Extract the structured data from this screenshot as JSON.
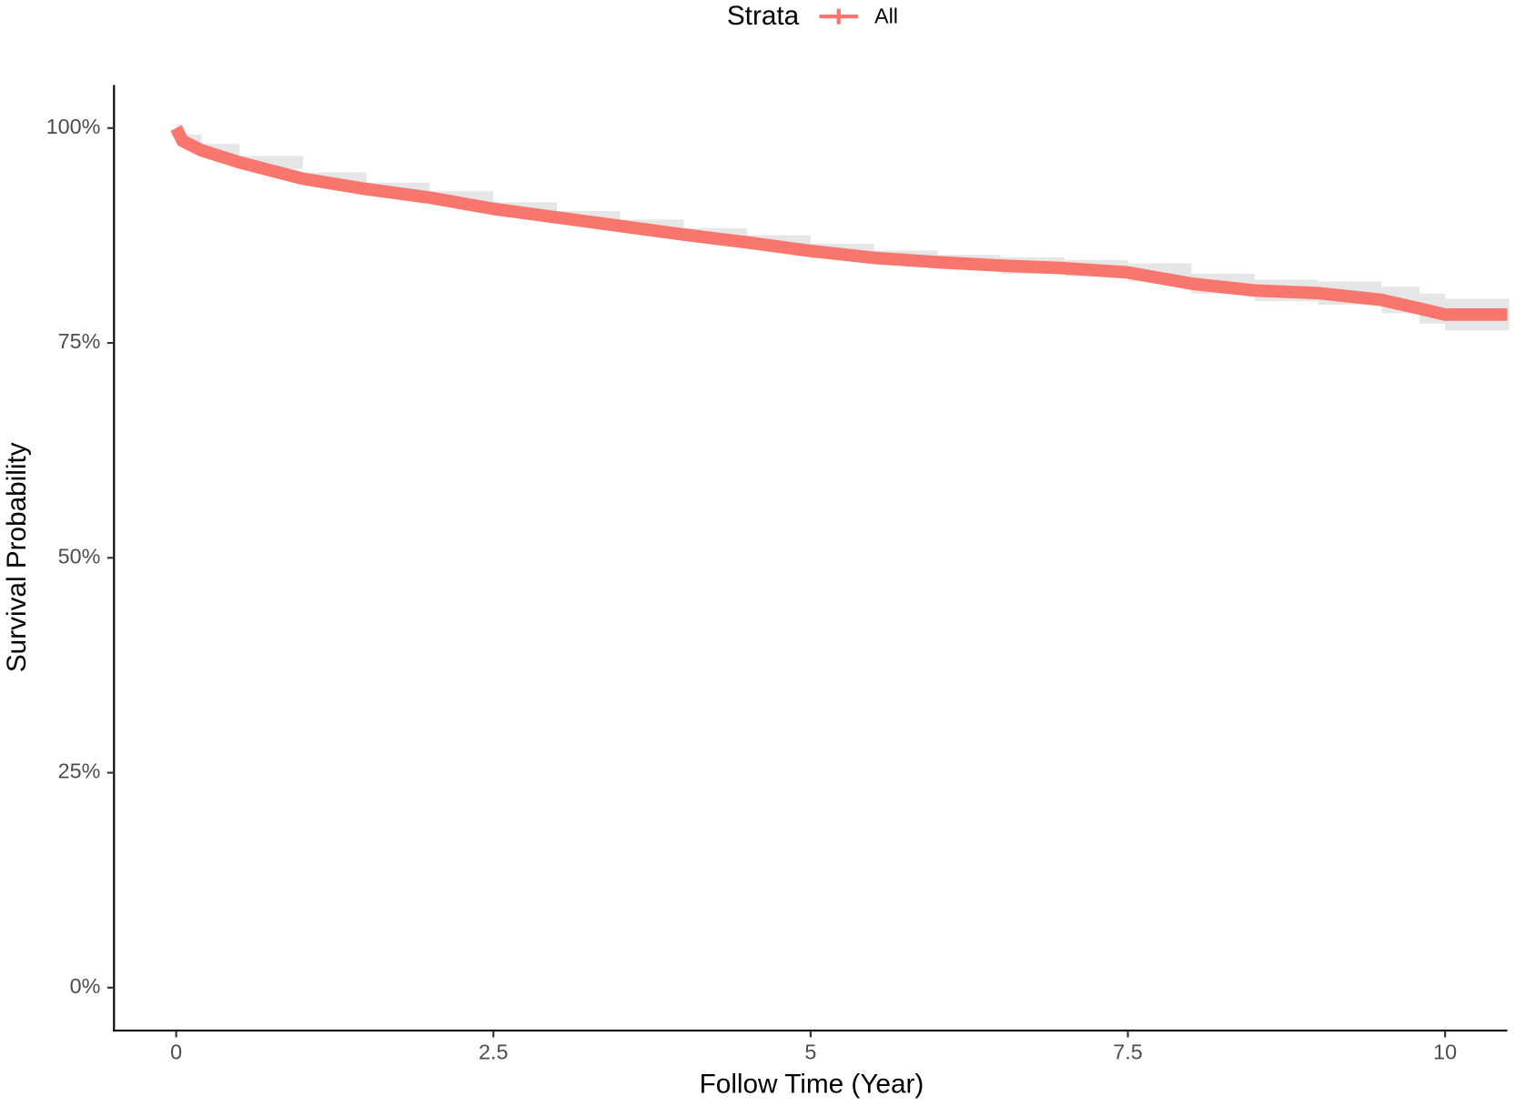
{
  "chart_data": {
    "type": "line",
    "x_label": "Follow Time (Year)",
    "y_label": "Survival Probability",
    "legend_title": "Strata",
    "legend": "top",
    "x": [
      0,
      0.05,
      0.2,
      0.5,
      1,
      1.5,
      2,
      2.5,
      3,
      3.5,
      4,
      4.5,
      5,
      5.5,
      6,
      6.5,
      7,
      7.5,
      8,
      8.5,
      9,
      9.5,
      9.8,
      10,
      10.49
    ],
    "series": [
      {
        "name": "All",
        "color": "#F8766D",
        "values": [
          100,
          98.5,
          97.4,
          96.0,
          94.1,
          92.9,
          91.9,
          90.6,
          89.6,
          88.6,
          87.6,
          86.7,
          85.7,
          84.9,
          84.4,
          84.0,
          83.7,
          83.2,
          81.9,
          81.1,
          80.8,
          80.0,
          79.0,
          78.3,
          78.3
        ],
        "ci_lower": [
          100,
          98.2,
          97.1,
          95.7,
          93.8,
          92.6,
          91.6,
          90.3,
          89.3,
          88.3,
          87.3,
          86.3,
          85.3,
          84.5,
          84.0,
          83.5,
          83.2,
          82.6,
          81.2,
          80.3,
          79.9,
          78.9,
          77.7,
          76.9,
          76.9
        ],
        "ci_upper": [
          100,
          98.8,
          97.7,
          96.3,
          94.4,
          93.2,
          92.2,
          90.9,
          89.9,
          88.9,
          87.9,
          87.1,
          86.1,
          85.3,
          84.8,
          84.5,
          84.2,
          83.8,
          82.6,
          81.9,
          81.7,
          81.1,
          80.3,
          79.7,
          79.7
        ]
      }
    ],
    "xlim": [
      -0.49,
      10.49
    ],
    "ylim": [
      -5,
      105
    ],
    "xticks": [
      0,
      2.5,
      5,
      7.5,
      10
    ],
    "yticks": [
      {
        "value": 0,
        "label": "0%"
      },
      {
        "value": 25,
        "label": "25%"
      },
      {
        "value": 50,
        "label": "50%"
      },
      {
        "value": 75,
        "label": "75%"
      },
      {
        "value": 100,
        "label": "100%"
      }
    ],
    "grid": false,
    "ci_color": "#e6e6e6"
  }
}
